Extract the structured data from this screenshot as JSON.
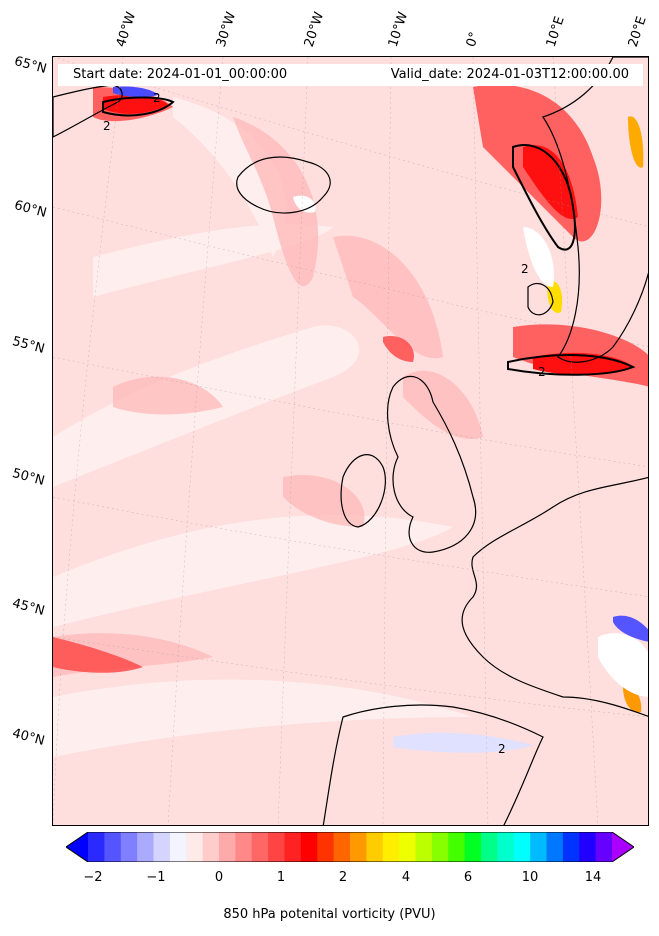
{
  "map": {
    "start_date": "Start date: 2024-01-01_00:00:00",
    "valid_date": "Valid_date: 2024-01-03T12:00:00.00",
    "longitude_labels": [
      "40°W",
      "30°W",
      "20°W",
      "10°W",
      "0°",
      "10°E",
      "20°E"
    ],
    "latitude_labels": [
      "65°N",
      "60°N",
      "55°N",
      "50°N",
      "45°N",
      "40°N"
    ],
    "contour_label": "2",
    "field": "850 hPa potential vorticity",
    "coastlines": [
      "Iceland",
      "Ireland",
      "Great Britain",
      "Scandinavia",
      "France",
      "Iberia",
      "Greenland"
    ],
    "colors": {
      "background_field": "#ffd6d6",
      "high_pv": "#ff2020",
      "negative_pv": "#3030ff",
      "contour": "#000000"
    }
  },
  "colorbar": {
    "label": "850 hPa potenital vorticity (PVU)",
    "tick_labels": [
      "−2",
      "−1",
      "0",
      "1",
      "2",
      "4",
      "6",
      "10",
      "14"
    ],
    "colors": [
      "#0000ff",
      "#2a2aff",
      "#5555ff",
      "#7f7fff",
      "#aaaaff",
      "#d4d4ff",
      "#f4f4ff",
      "#ffeaea",
      "#ffcccc",
      "#ffaaaa",
      "#ff8888",
      "#ff6666",
      "#ff4444",
      "#ff2222",
      "#ff0000",
      "#ff3300",
      "#ff6600",
      "#ff9900",
      "#ffcc00",
      "#ffee00",
      "#eeff00",
      "#bbff00",
      "#88ff00",
      "#44ff00",
      "#00ff22",
      "#00ff88",
      "#00ffcc",
      "#00ffff",
      "#00bbff",
      "#0077ff",
      "#0033ff",
      "#2200ff",
      "#6600ff",
      "#aa00ff"
    ]
  }
}
